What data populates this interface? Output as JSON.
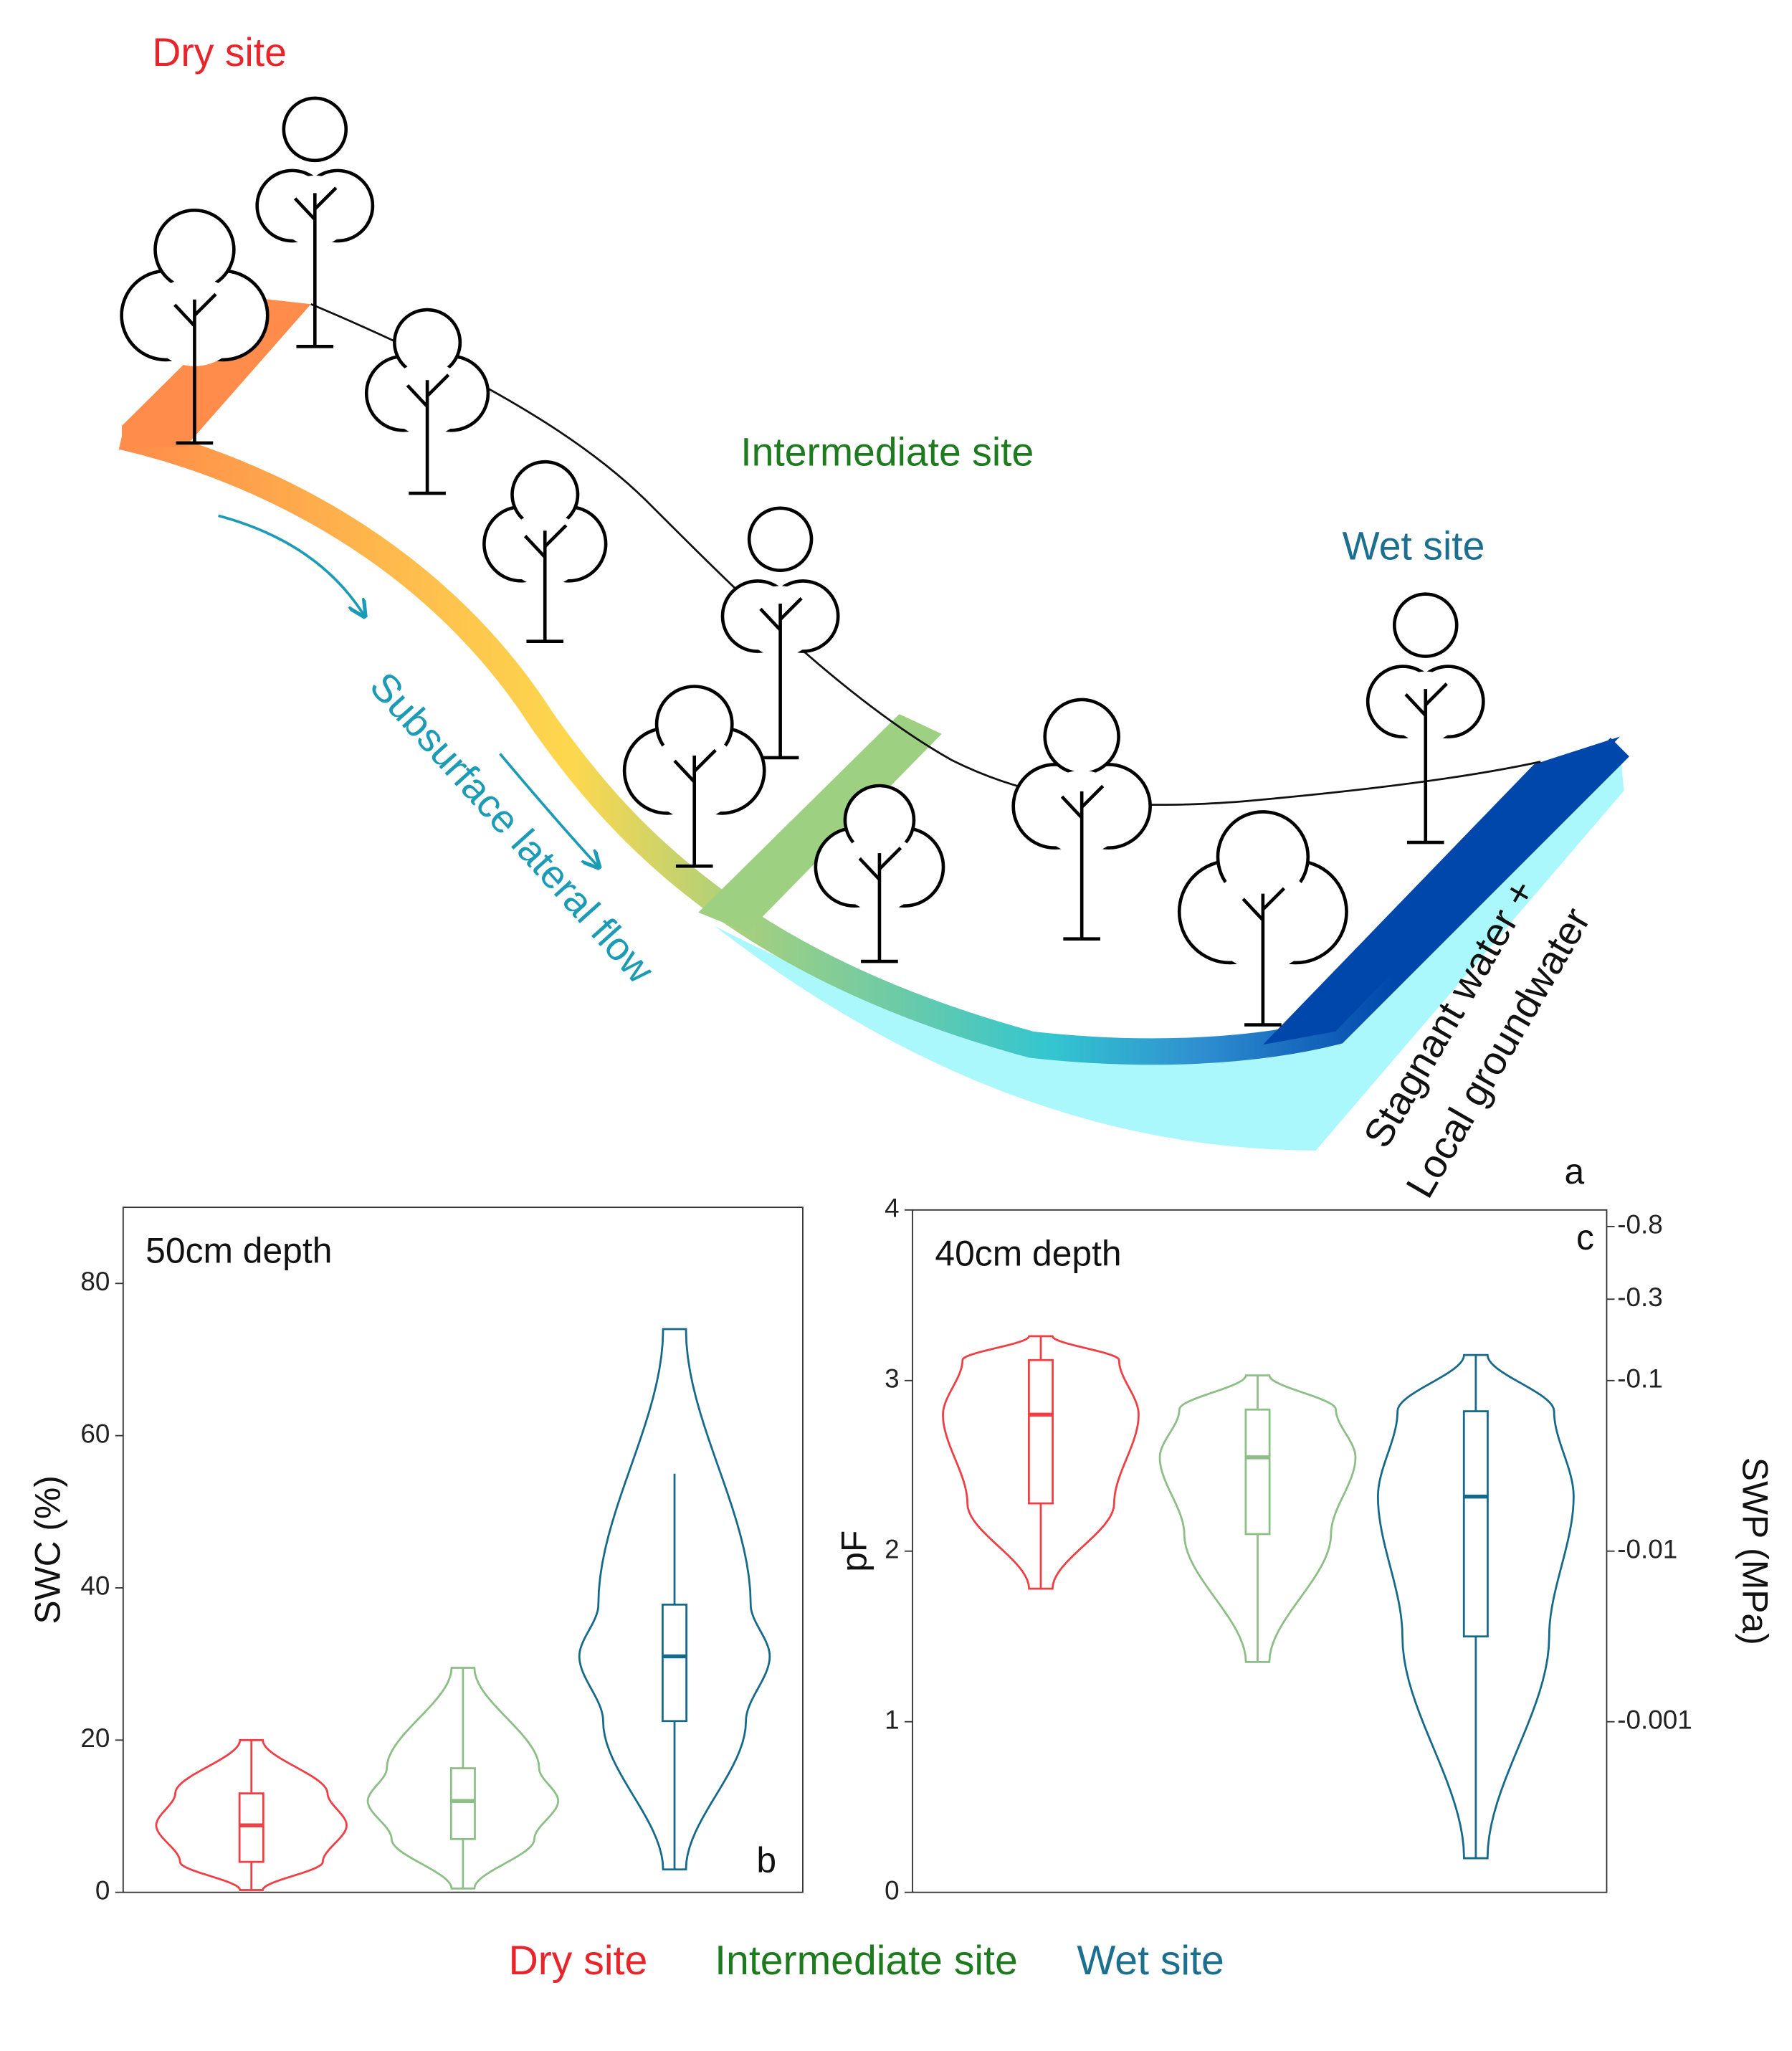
{
  "diagram": {
    "dry": "Dry site",
    "intermediate": "Intermediate site",
    "wet": "Wet site",
    "flow": "Subsurface lateral flow",
    "stagnant_1": "Stagnant water +",
    "stagnant_2": "Local groundwater",
    "panel": "a"
  },
  "chart_data": [
    {
      "type": "violin",
      "annotation": "50cm depth",
      "panel": "b",
      "ylabel": "SWC (%)",
      "ylim": [
        0,
        90
      ],
      "yticks": [
        0,
        20,
        40,
        60,
        80
      ],
      "series": [
        {
          "name": "Dry site",
          "color": "#ef3e44",
          "label_color": "#e8252b",
          "min": 0.3,
          "q1": 4,
          "median": 8.8,
          "q3": 13,
          "max": 20,
          "whisker_low": 0.3,
          "whisker_high": 20
        },
        {
          "name": "Intermediate site",
          "color": "#8cbf86",
          "label_color": "#1e7a1e",
          "min": 0.5,
          "q1": 7,
          "median": 12,
          "q3": 16.3,
          "max": 29.5,
          "whisker_low": 0.5,
          "whisker_high": 29.5
        },
        {
          "name": "Wet site",
          "color": "#15698a",
          "label_color": "#1d6f8f",
          "min": 3,
          "q1": 22.5,
          "median": 31,
          "q3": 37.8,
          "max": 74,
          "whisker_low": 3,
          "whisker_high": 55
        }
      ]
    },
    {
      "type": "violin",
      "annotation": "40cm depth",
      "panel": "c",
      "ylabel": "pF",
      "y2label": "SWP (MPa)",
      "ylim": [
        0,
        4
      ],
      "yticks": [
        0,
        1,
        2,
        3,
        4
      ],
      "y2lim": [
        -0.0001,
        -1
      ],
      "y2log": true,
      "y2ticks": [
        -0.8,
        -0.3,
        -0.1,
        -0.01,
        -0.001
      ],
      "series": [
        {
          "name": "Dry site",
          "color": "#ef3e44",
          "min": 1.78,
          "q1": 2.28,
          "median": 2.8,
          "q3": 3.12,
          "max": 3.26,
          "whisker_low": 1.78,
          "whisker_high": 3.26
        },
        {
          "name": "Intermediate site",
          "color": "#8cbf86",
          "min": 1.35,
          "q1": 2.1,
          "median": 2.55,
          "q3": 2.83,
          "max": 3.03,
          "whisker_low": 1.35,
          "whisker_high": 3.03
        },
        {
          "name": "Wet site",
          "color": "#15698a",
          "min": 0.2,
          "q1": 1.5,
          "median": 2.32,
          "q3": 2.82,
          "max": 3.15,
          "whisker_low": 0.2,
          "whisker_high": 3.15
        }
      ]
    }
  ]
}
